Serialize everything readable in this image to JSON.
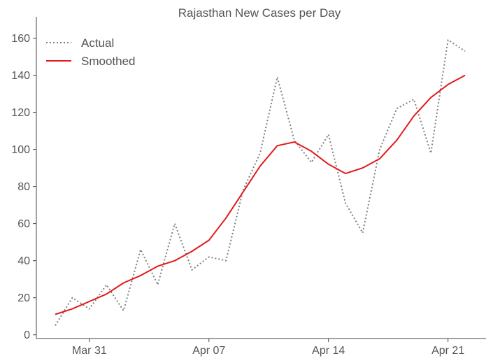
{
  "chart_data": {
    "type": "line",
    "title": "Rajasthan New Cases per Day",
    "xlabel": "",
    "ylabel": "",
    "x_dates": [
      "Mar 29",
      "Mar 30",
      "Mar 31",
      "Apr 01",
      "Apr 02",
      "Apr 03",
      "Apr 04",
      "Apr 05",
      "Apr 06",
      "Apr 07",
      "Apr 08",
      "Apr 09",
      "Apr 10",
      "Apr 11",
      "Apr 12",
      "Apr 13",
      "Apr 14",
      "Apr 15",
      "Apr 16",
      "Apr 17",
      "Apr 18",
      "Apr 19",
      "Apr 20",
      "Apr 21",
      "Apr 22"
    ],
    "x_ticks": [
      {
        "label": "Mar 31",
        "date": "Mar 31"
      },
      {
        "label": "Apr 07",
        "date": "Apr 07"
      },
      {
        "label": "Apr 14",
        "date": "Apr 14"
      },
      {
        "label": "Apr 21",
        "date": "Apr 21"
      }
    ],
    "y_ticks": [
      0,
      20,
      40,
      60,
      80,
      100,
      120,
      140,
      160
    ],
    "ylim": [
      -2,
      167
    ],
    "grid": false,
    "legend_position": "top-left",
    "series": [
      {
        "name": "Actual",
        "style": "dotted",
        "color": "#808080",
        "values": [
          5,
          20,
          14,
          27,
          13,
          46,
          27,
          60,
          35,
          42,
          40,
          78,
          98,
          139,
          105,
          93,
          108,
          71,
          55,
          100,
          122,
          127,
          98,
          159,
          153
        ]
      },
      {
        "name": "Smoothed",
        "style": "solid",
        "color": "#e31a1c",
        "values": [
          11,
          14,
          18,
          22,
          28,
          32,
          37,
          40,
          45,
          51,
          63,
          77,
          91,
          102,
          104,
          99,
          92,
          87,
          90,
          95,
          105,
          118,
          128,
          135,
          140
        ]
      }
    ]
  }
}
